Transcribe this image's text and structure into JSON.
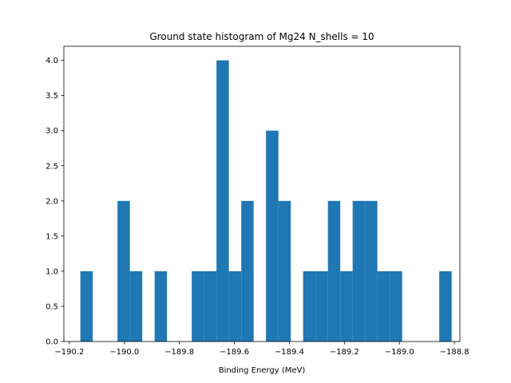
{
  "chart_data": {
    "type": "bar",
    "subtype": "histogram",
    "title": "Ground state histogram of Mg24 N_shells = 10",
    "xlabel": "Binding Energy (MeV)",
    "ylabel": "",
    "xlim": [
      -190.22,
      -188.78
    ],
    "ylim": [
      0.0,
      4.2
    ],
    "bar_color": "#1f77b4",
    "grid": false,
    "legend": "none",
    "bin_width": 0.045,
    "bins": [
      {
        "x0": -190.16,
        "count": 1
      },
      {
        "x0": -190.115,
        "count": 0
      },
      {
        "x0": -190.07,
        "count": 0
      },
      {
        "x0": -190.025,
        "count": 2
      },
      {
        "x0": -189.98,
        "count": 1
      },
      {
        "x0": -189.935,
        "count": 0
      },
      {
        "x0": -189.89,
        "count": 1
      },
      {
        "x0": -189.845,
        "count": 0
      },
      {
        "x0": -189.8,
        "count": 0
      },
      {
        "x0": -189.755,
        "count": 1
      },
      {
        "x0": -189.71,
        "count": 1
      },
      {
        "x0": -189.665,
        "count": 4
      },
      {
        "x0": -189.62,
        "count": 1
      },
      {
        "x0": -189.575,
        "count": 2
      },
      {
        "x0": -189.53,
        "count": 0
      },
      {
        "x0": -189.485,
        "count": 3
      },
      {
        "x0": -189.44,
        "count": 2
      },
      {
        "x0": -189.395,
        "count": 0
      },
      {
        "x0": -189.35,
        "count": 1
      },
      {
        "x0": -189.305,
        "count": 1
      },
      {
        "x0": -189.26,
        "count": 2
      },
      {
        "x0": -189.215,
        "count": 1
      },
      {
        "x0": -189.17,
        "count": 2
      },
      {
        "x0": -189.125,
        "count": 2
      },
      {
        "x0": -189.08,
        "count": 1
      },
      {
        "x0": -189.035,
        "count": 1
      },
      {
        "x0": -188.99,
        "count": 0
      },
      {
        "x0": -188.945,
        "count": 0
      },
      {
        "x0": -188.9,
        "count": 0
      },
      {
        "x0": -188.855,
        "count": 1
      }
    ],
    "xticks": [
      {
        "value": -190.2,
        "label": "−190.2"
      },
      {
        "value": -190.0,
        "label": "−190.0"
      },
      {
        "value": -189.8,
        "label": "−189.8"
      },
      {
        "value": -189.6,
        "label": "−189.6"
      },
      {
        "value": -189.4,
        "label": "−189.4"
      },
      {
        "value": -189.2,
        "label": "−189.2"
      },
      {
        "value": -189.0,
        "label": "−189.0"
      },
      {
        "value": -188.8,
        "label": "−188.8"
      }
    ],
    "yticks": [
      {
        "value": 0.0,
        "label": "0.0"
      },
      {
        "value": 0.5,
        "label": "0.5"
      },
      {
        "value": 1.0,
        "label": "1.0"
      },
      {
        "value": 1.5,
        "label": "1.5"
      },
      {
        "value": 2.0,
        "label": "2.0"
      },
      {
        "value": 2.5,
        "label": "2.5"
      },
      {
        "value": 3.0,
        "label": "3.0"
      },
      {
        "value": 3.5,
        "label": "3.5"
      },
      {
        "value": 4.0,
        "label": "4.0"
      }
    ]
  }
}
